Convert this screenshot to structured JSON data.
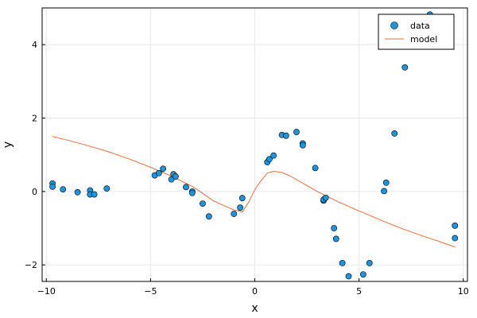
{
  "chart_data": {
    "type": "scatter",
    "xlabel": "x",
    "ylabel": "y",
    "xlim": [
      -10.2,
      10.2
    ],
    "ylim": [
      -2.45,
      5.0
    ],
    "x_ticks": [
      -10,
      -5,
      0,
      5,
      10
    ],
    "x_tick_labels": [
      "−10",
      "−5",
      "0",
      "5",
      "10"
    ],
    "y_ticks": [
      -2,
      0,
      2,
      4
    ],
    "y_tick_labels": [
      "−2",
      "0",
      "2",
      "4"
    ],
    "grid": true,
    "legend_position": "top-right",
    "colors": {
      "data": "#1f94dc",
      "model": "#e26f46",
      "grid": "#e8e8e8",
      "axis": "#000000"
    },
    "series": [
      {
        "name": "data",
        "kind": "scatter",
        "points": [
          [
            -9.7,
            0.22
          ],
          [
            -9.7,
            0.13
          ],
          [
            -9.2,
            0.06
          ],
          [
            -8.5,
            -0.02
          ],
          [
            -7.9,
            0.03
          ],
          [
            -7.9,
            -0.08
          ],
          [
            -7.7,
            -0.08
          ],
          [
            -7.1,
            0.08
          ],
          [
            -4.8,
            0.44
          ],
          [
            -4.6,
            0.5
          ],
          [
            -4.4,
            0.62
          ],
          [
            -4.0,
            0.33
          ],
          [
            -3.9,
            0.47
          ],
          [
            -3.8,
            0.41
          ],
          [
            -3.3,
            0.12
          ],
          [
            -3.0,
            0.0
          ],
          [
            -3.0,
            -0.04
          ],
          [
            -2.5,
            -0.33
          ],
          [
            -2.2,
            -0.68
          ],
          [
            -1.0,
            -0.61
          ],
          [
            -0.7,
            -0.44
          ],
          [
            -0.6,
            -0.18
          ],
          [
            0.6,
            0.8
          ],
          [
            0.7,
            0.88
          ],
          [
            0.9,
            0.98
          ],
          [
            1.3,
            1.54
          ],
          [
            1.5,
            1.52
          ],
          [
            2.0,
            1.62
          ],
          [
            2.3,
            1.31
          ],
          [
            2.3,
            1.26
          ],
          [
            2.9,
            0.64
          ],
          [
            3.3,
            -0.25
          ],
          [
            3.3,
            -0.22
          ],
          [
            3.4,
            -0.17
          ],
          [
            3.8,
            -1.0
          ],
          [
            3.9,
            -1.29
          ],
          [
            4.2,
            -1.95
          ],
          [
            4.5,
            -2.31
          ],
          [
            5.2,
            -2.26
          ],
          [
            5.5,
            -1.95
          ],
          [
            6.2,
            0.01
          ],
          [
            6.3,
            0.24
          ],
          [
            6.7,
            1.58
          ],
          [
            7.2,
            3.38
          ],
          [
            8.4,
            4.82
          ],
          [
            9.6,
            -0.93
          ],
          [
            9.6,
            -1.27
          ]
        ]
      },
      {
        "name": "model",
        "kind": "line",
        "points": [
          [
            -9.7,
            1.5
          ],
          [
            -9.0,
            1.4
          ],
          [
            -8.0,
            1.25
          ],
          [
            -7.0,
            1.08
          ],
          [
            -6.0,
            0.88
          ],
          [
            -5.0,
            0.66
          ],
          [
            -4.0,
            0.42
          ],
          [
            -3.0,
            0.14
          ],
          [
            -2.5,
            -0.05
          ],
          [
            -2.0,
            -0.25
          ],
          [
            -1.5,
            -0.38
          ],
          [
            -1.0,
            -0.5
          ],
          [
            -0.6,
            -0.56
          ],
          [
            -0.3,
            -0.3
          ],
          [
            0.0,
            0.05
          ],
          [
            0.3,
            0.3
          ],
          [
            0.6,
            0.5
          ],
          [
            0.9,
            0.55
          ],
          [
            1.3,
            0.52
          ],
          [
            1.7,
            0.42
          ],
          [
            2.2,
            0.26
          ],
          [
            3.0,
            0.0
          ],
          [
            4.0,
            -0.28
          ],
          [
            5.0,
            -0.53
          ],
          [
            6.0,
            -0.77
          ],
          [
            7.0,
            -1.0
          ],
          [
            8.0,
            -1.2
          ],
          [
            9.0,
            -1.39
          ],
          [
            9.6,
            -1.51
          ]
        ]
      }
    ]
  }
}
